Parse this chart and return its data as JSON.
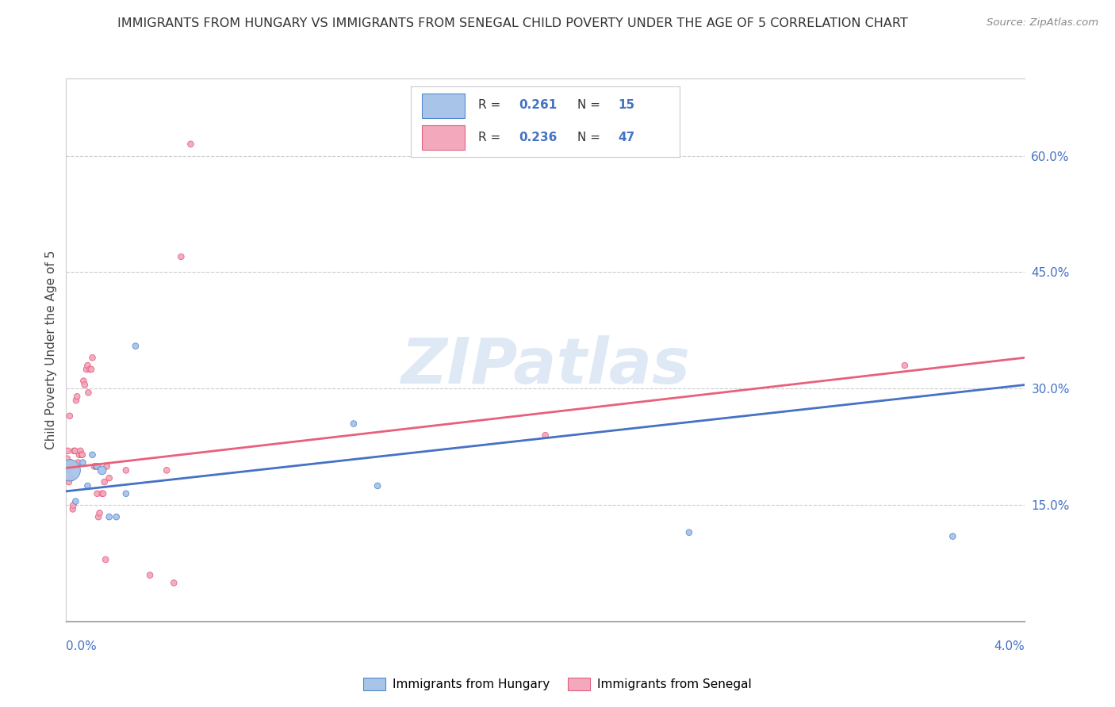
{
  "title": "IMMIGRANTS FROM HUNGARY VS IMMIGRANTS FROM SENEGAL CHILD POVERTY UNDER THE AGE OF 5 CORRELATION CHART",
  "source": "Source: ZipAtlas.com",
  "ylabel": "Child Poverty Under the Age of 5",
  "right_yticks": [
    "60.0%",
    "45.0%",
    "30.0%",
    "15.0%"
  ],
  "right_ytick_vals": [
    0.6,
    0.45,
    0.3,
    0.15
  ],
  "xlim": [
    0.0,
    0.04
  ],
  "ylim": [
    0.0,
    0.7
  ],
  "hungary_color": "#a8c4e8",
  "senegal_color": "#f4a8bc",
  "hungary_edge_color": "#5588cc",
  "senegal_edge_color": "#e06080",
  "hungary_line_color": "#4472c4",
  "senegal_line_color": "#e8607a",
  "watermark_text": "ZIPatlas",
  "hungary_R": "0.261",
  "hungary_N": "15",
  "senegal_R": "0.236",
  "senegal_N": "47",
  "hungary_points": [
    [
      0.00015,
      0.195
    ],
    [
      0.0004,
      0.155
    ],
    [
      0.0007,
      0.205
    ],
    [
      0.0009,
      0.175
    ],
    [
      0.0011,
      0.215
    ],
    [
      0.0013,
      0.2
    ],
    [
      0.0015,
      0.195
    ],
    [
      0.0018,
      0.135
    ],
    [
      0.0021,
      0.135
    ],
    [
      0.0025,
      0.165
    ],
    [
      0.0029,
      0.355
    ],
    [
      0.012,
      0.255
    ],
    [
      0.013,
      0.175
    ],
    [
      0.026,
      0.115
    ],
    [
      0.037,
      0.11
    ]
  ],
  "hungary_sizes": [
    380,
    30,
    30,
    30,
    30,
    30,
    60,
    30,
    30,
    30,
    30,
    30,
    30,
    30,
    30
  ],
  "senegal_points": [
    [
      5e-05,
      0.21
    ],
    [
      8e-05,
      0.22
    ],
    [
      0.0001,
      0.195
    ],
    [
      0.00012,
      0.18
    ],
    [
      0.00015,
      0.265
    ],
    [
      0.00018,
      0.2
    ],
    [
      0.0002,
      0.205
    ],
    [
      0.00022,
      0.185
    ],
    [
      0.00025,
      0.2
    ],
    [
      0.00028,
      0.145
    ],
    [
      0.0003,
      0.15
    ],
    [
      0.00033,
      0.22
    ],
    [
      0.00038,
      0.22
    ],
    [
      0.00042,
      0.285
    ],
    [
      0.00046,
      0.29
    ],
    [
      0.0005,
      0.205
    ],
    [
      0.00055,
      0.215
    ],
    [
      0.0006,
      0.22
    ],
    [
      0.00065,
      0.215
    ],
    [
      0.00068,
      0.215
    ],
    [
      0.00073,
      0.31
    ],
    [
      0.00078,
      0.305
    ],
    [
      0.00085,
      0.325
    ],
    [
      0.0009,
      0.33
    ],
    [
      0.00093,
      0.295
    ],
    [
      0.001,
      0.325
    ],
    [
      0.00105,
      0.325
    ],
    [
      0.0011,
      0.34
    ],
    [
      0.00118,
      0.2
    ],
    [
      0.00125,
      0.2
    ],
    [
      0.0013,
      0.165
    ],
    [
      0.00135,
      0.135
    ],
    [
      0.0014,
      0.14
    ],
    [
      0.0015,
      0.165
    ],
    [
      0.00155,
      0.165
    ],
    [
      0.0016,
      0.18
    ],
    [
      0.00165,
      0.08
    ],
    [
      0.0017,
      0.2
    ],
    [
      0.0018,
      0.185
    ],
    [
      0.0025,
      0.195
    ],
    [
      0.0035,
      0.06
    ],
    [
      0.0042,
      0.195
    ],
    [
      0.0045,
      0.05
    ],
    [
      0.0048,
      0.47
    ],
    [
      0.0052,
      0.615
    ],
    [
      0.02,
      0.24
    ],
    [
      0.035,
      0.33
    ]
  ],
  "senegal_sizes": [
    30,
    30,
    30,
    30,
    30,
    30,
    30,
    30,
    30,
    30,
    30,
    30,
    30,
    30,
    30,
    30,
    30,
    30,
    30,
    30,
    30,
    30,
    30,
    30,
    30,
    30,
    30,
    30,
    30,
    30,
    30,
    30,
    30,
    30,
    30,
    30,
    30,
    30,
    30,
    30,
    30,
    30,
    30,
    30,
    30,
    30,
    30
  ],
  "hungary_trendline": [
    [
      0.0,
      0.168
    ],
    [
      0.04,
      0.305
    ]
  ],
  "senegal_trendline": [
    [
      0.0,
      0.198
    ],
    [
      0.04,
      0.34
    ]
  ]
}
